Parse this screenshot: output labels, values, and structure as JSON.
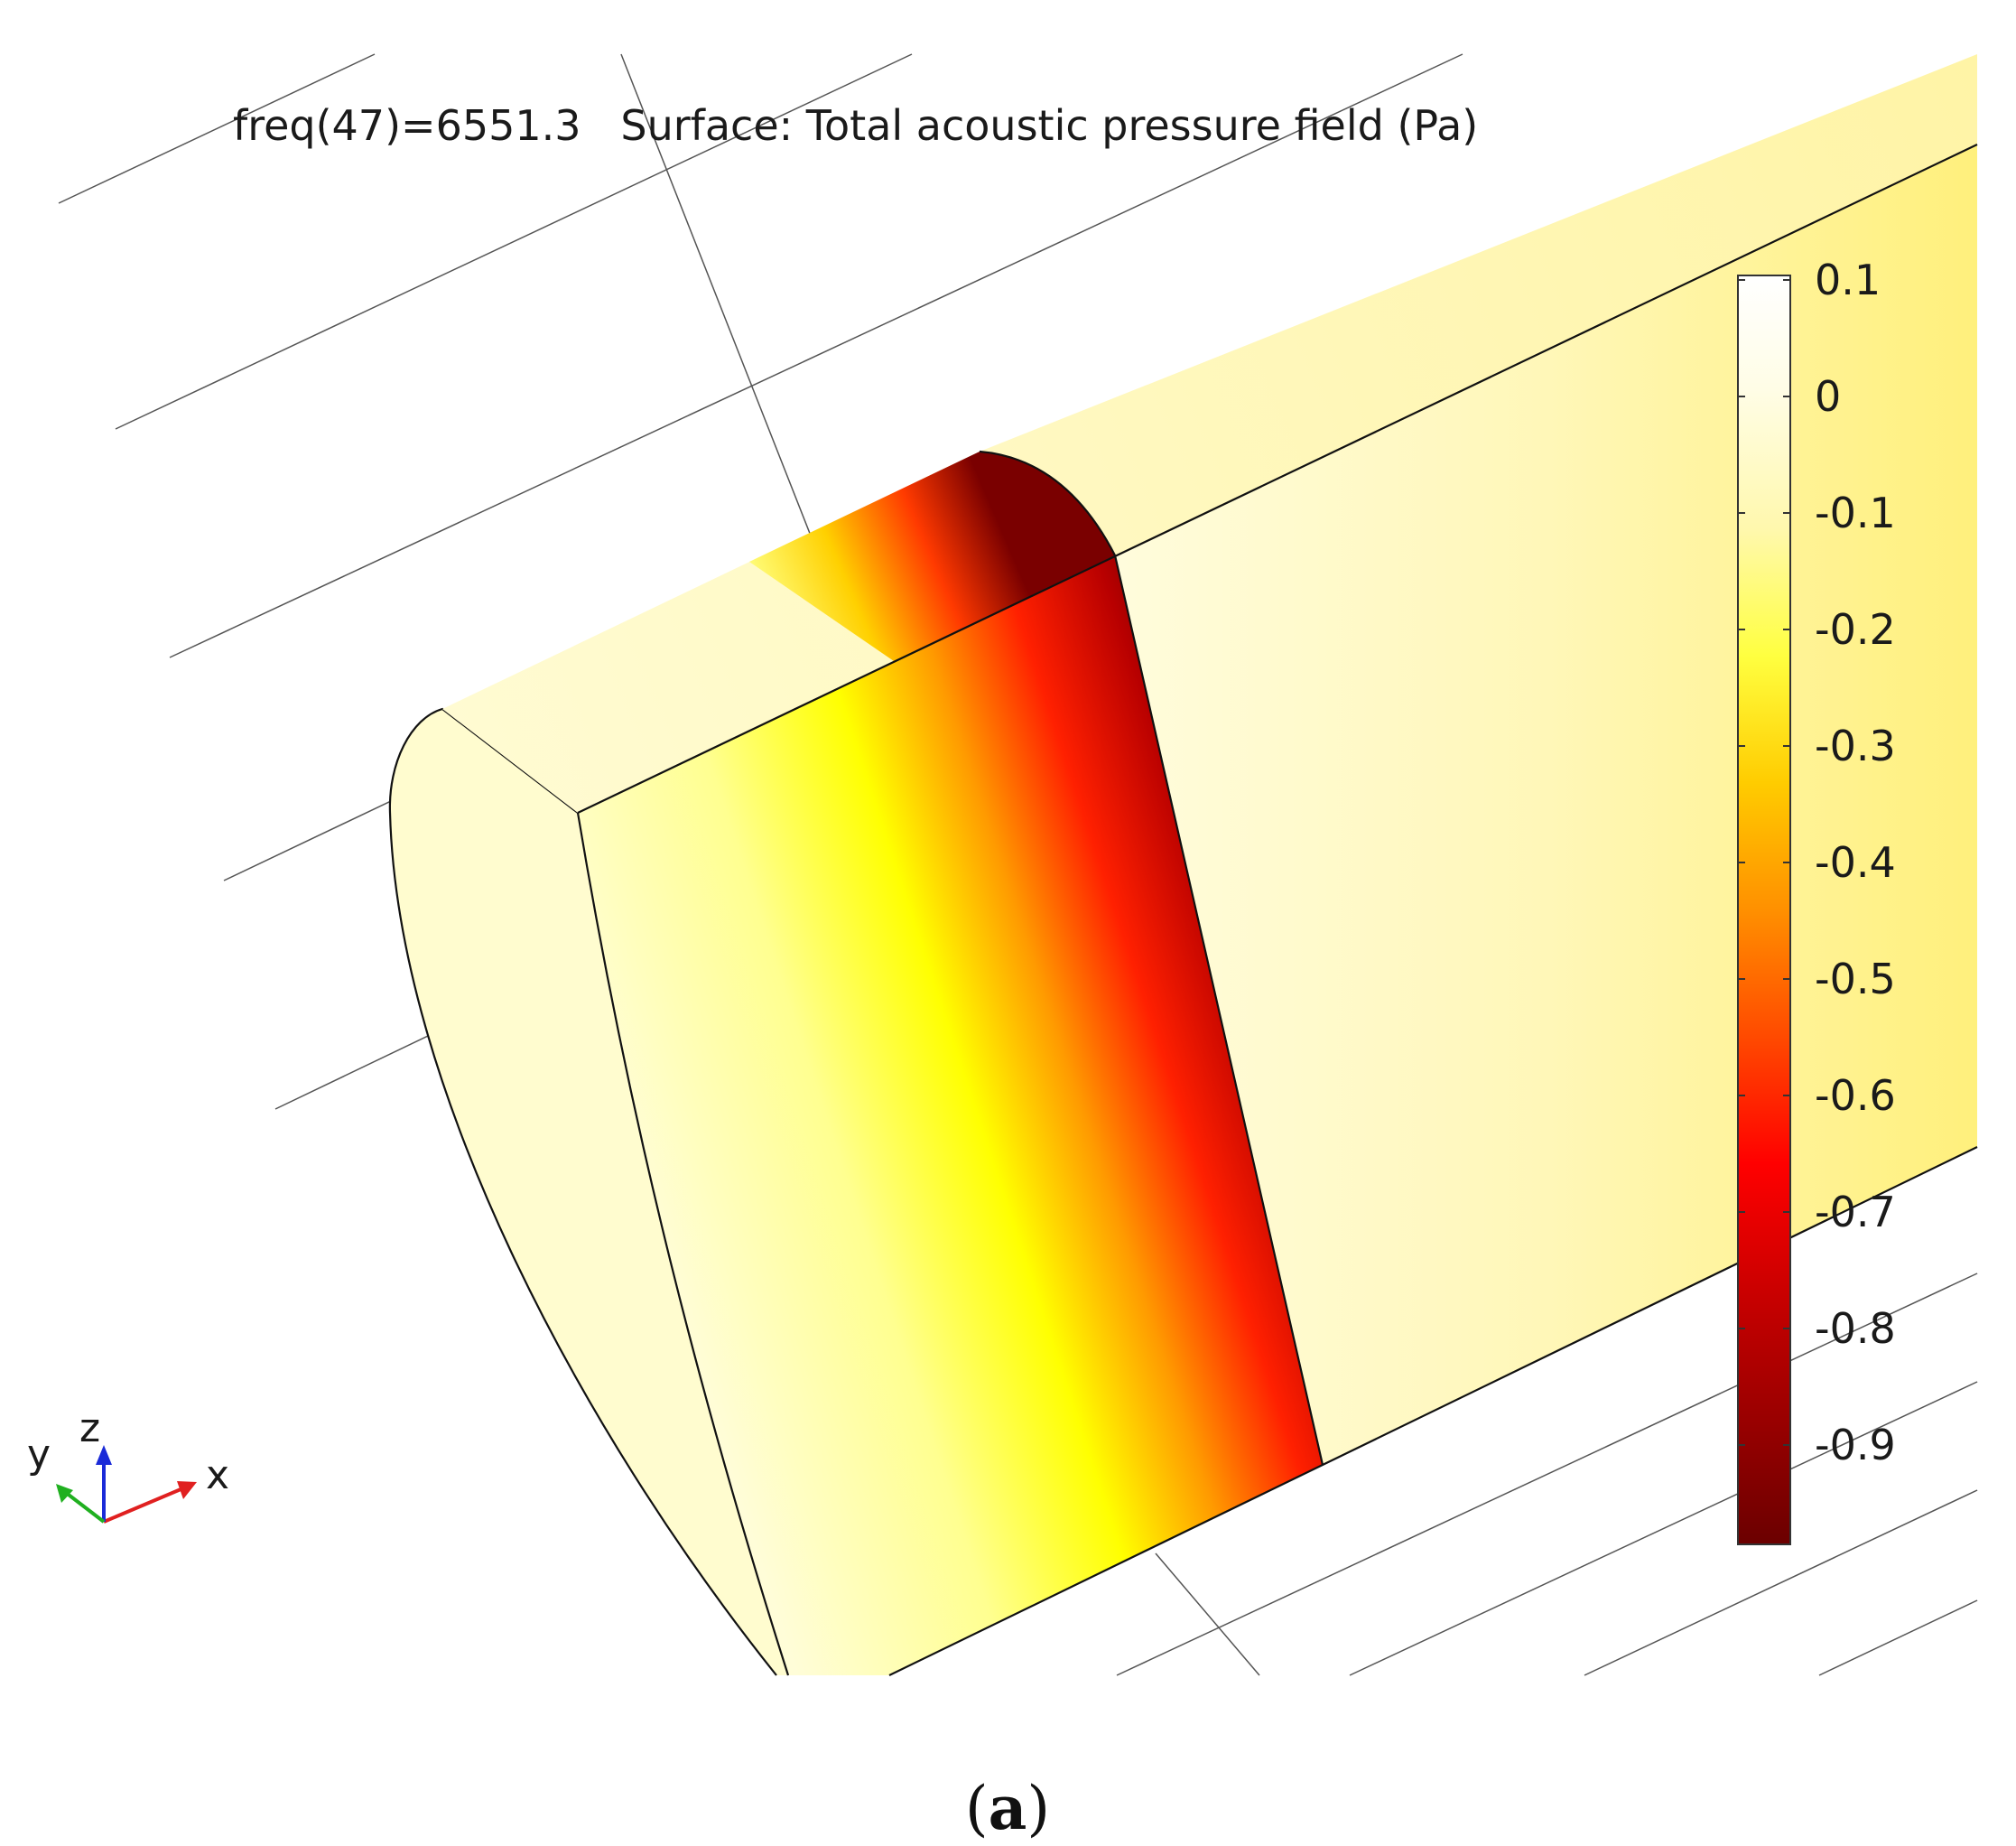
{
  "plot_title": "freq(47)=6551.3   Surface: Total acoustic pressure field (Pa)",
  "colorbar": {
    "ticks": [
      "0.1",
      "0",
      "-0.1",
      "-0.2",
      "-0.3",
      "-0.4",
      "-0.5",
      "-0.6",
      "-0.7",
      "-0.8",
      "-0.9"
    ],
    "colors": [
      "#ffffff",
      "#fffbd3",
      "#ffff90",
      "#ffff00",
      "#ffa500",
      "#ff3300",
      "#c00000",
      "#6b0000"
    ]
  },
  "axes_triad": {
    "x": "x",
    "y": "y",
    "z": "z"
  },
  "caption": {
    "open": "(",
    "label": "a",
    "close": ")"
  }
}
